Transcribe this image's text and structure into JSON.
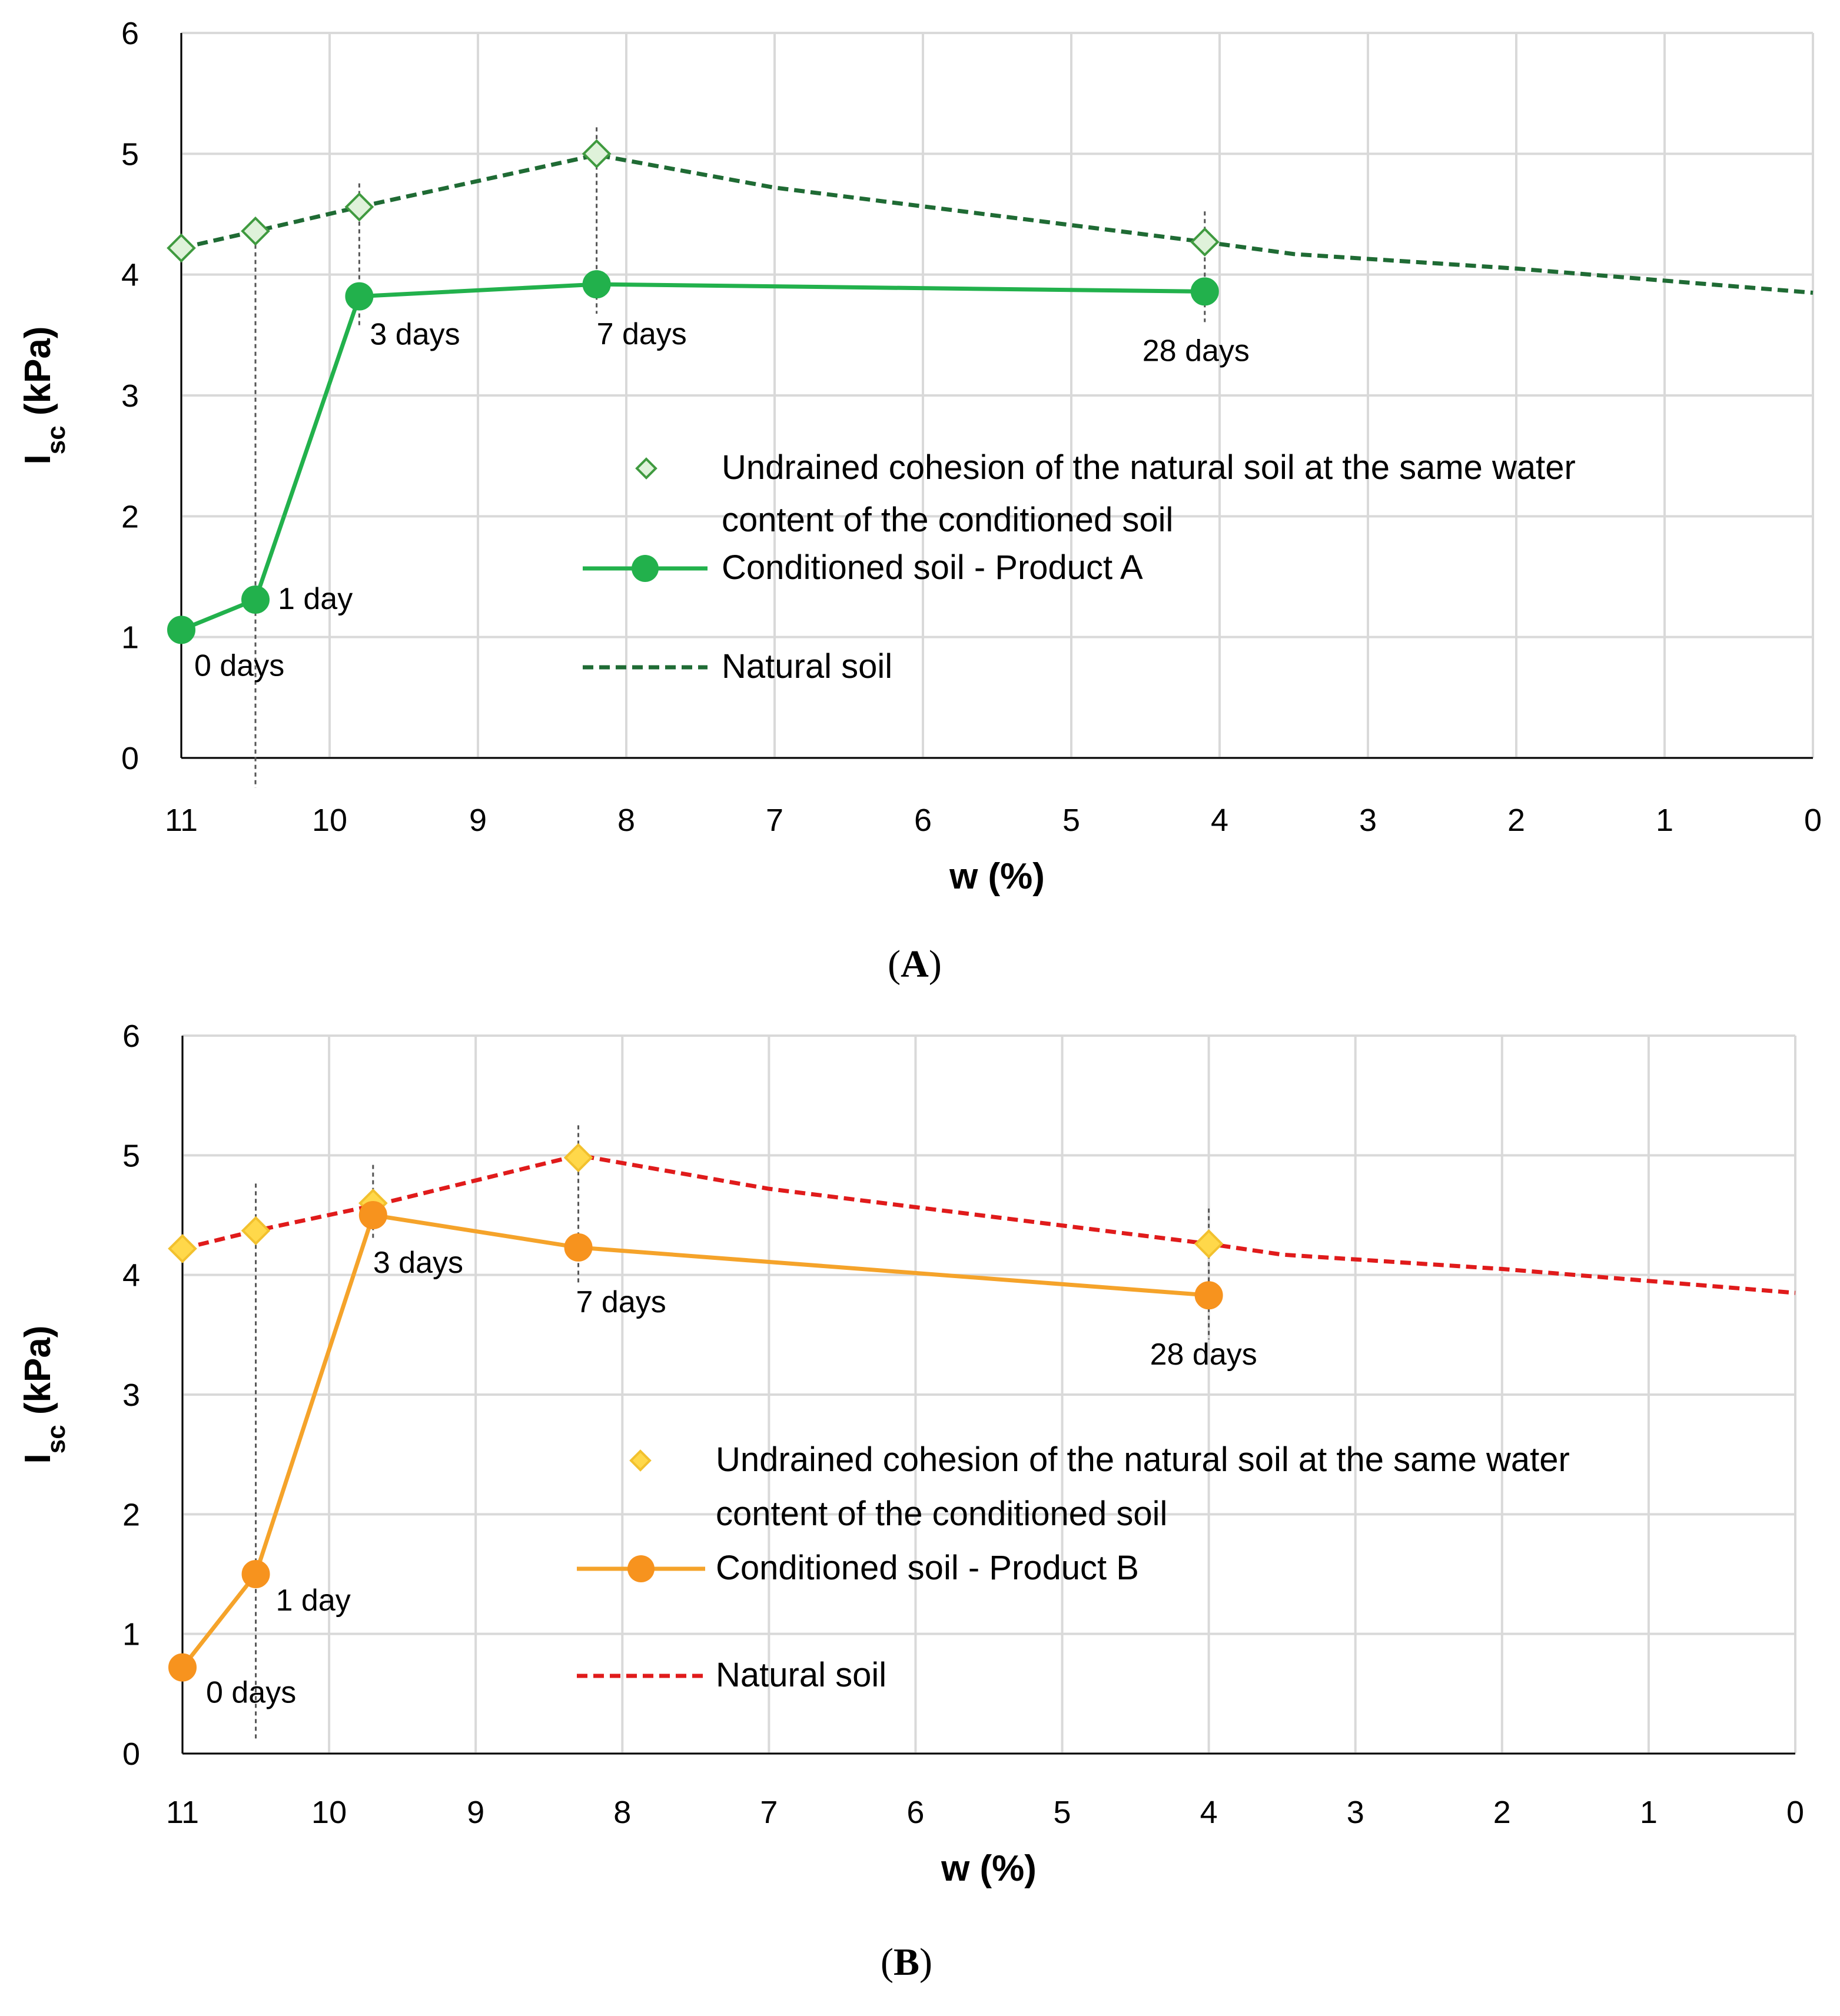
{
  "chart_data": [
    {
      "type": "line",
      "panel_label": "A",
      "xlabel": "w (%)",
      "ylabel": "Isc (kPa)",
      "ylabel_main": "I",
      "ylabel_sub": "sc",
      "ylabel_unit": " (kPa)",
      "xlim": [
        11,
        0
      ],
      "ylim": [
        0,
        6
      ],
      "x_reversed": true,
      "grid": true,
      "x_ticks": [
        "11",
        "10",
        "9",
        "8",
        "7",
        "6",
        "5",
        "4",
        "3",
        "2",
        "1",
        "0"
      ],
      "y_ticks": [
        "0",
        "1",
        "2",
        "3",
        "4",
        "5",
        "6"
      ],
      "series": [
        {
          "name": "Natural soil",
          "style": "dashed",
          "color": "#1f6b34",
          "x": [
            11,
            10.5,
            9.8,
            8.2,
            7,
            4.1,
            3.5,
            2,
            0
          ],
          "y": [
            4.22,
            4.36,
            4.56,
            4.99,
            4.72,
            4.27,
            4.17,
            4.05,
            3.85
          ]
        },
        {
          "name": "Conditioned soil - Product A",
          "style": "solid-markers",
          "color": "#22b14c",
          "x": [
            11,
            10.5,
            9.8,
            8.2,
            4.1
          ],
          "y": [
            1.06,
            1.31,
            3.82,
            3.92,
            3.86
          ],
          "labels": [
            "0 days",
            "1 day",
            "3 days",
            "7 days",
            "28 days"
          ]
        },
        {
          "name": "Undrained cohesion of the natural soil at the same water content of the conditioned soil",
          "legend_line1": "Undrained cohesion of the natural soil at the same water",
          "legend_line2": "content of the conditioned soil",
          "style": "diamond-markers",
          "marker_fill": "#dff2da",
          "marker_stroke": "#3f9a3f",
          "x": [
            11,
            10.5,
            9.8,
            8.2,
            4.1
          ],
          "y": [
            4.22,
            4.36,
            4.56,
            5.0,
            4.27
          ]
        }
      ]
    },
    {
      "type": "line",
      "panel_label": "B",
      "xlabel": "w (%)",
      "ylabel": "Isc (kPa)",
      "ylabel_main": "I",
      "ylabel_sub": "sc",
      "ylabel_unit": " (kPa)",
      "xlim": [
        11,
        0
      ],
      "ylim": [
        0,
        6
      ],
      "x_reversed": true,
      "grid": true,
      "x_ticks": [
        "11",
        "10",
        "9",
        "8",
        "7",
        "6",
        "5",
        "4",
        "3",
        "2",
        "1",
        "0"
      ],
      "y_ticks": [
        "0",
        "1",
        "2",
        "3",
        "4",
        "5",
        "6"
      ],
      "series": [
        {
          "name": "Natural soil",
          "style": "dashed",
          "color": "#e01b1b",
          "x": [
            11,
            10.5,
            9.7,
            8.3,
            7,
            4,
            3.5,
            2,
            0
          ],
          "y": [
            4.22,
            4.37,
            4.58,
            5.0,
            4.72,
            4.26,
            4.17,
            4.05,
            3.85
          ]
        },
        {
          "name": "Conditioned soil - Product B",
          "style": "solid-markers",
          "color": "#f5a32a",
          "marker_color": "#f7931e",
          "x": [
            11,
            10.5,
            9.7,
            8.3,
            4
          ],
          "y": [
            0.72,
            1.5,
            4.5,
            4.23,
            3.83
          ],
          "labels": [
            "0 days",
            "1 day",
            "3 days",
            "7 days",
            "28 days"
          ]
        },
        {
          "name": "Undrained cohesion of the natural soil at the same water content of the conditioned soil",
          "legend_line1": "Undrained cohesion of the natural soil at the same water",
          "legend_line2": "content of the conditioned soil",
          "style": "diamond-markers",
          "marker_fill": "#ffd84a",
          "marker_stroke": "#f2c12e",
          "x": [
            11,
            10.5,
            9.7,
            8.3,
            4
          ],
          "y": [
            4.22,
            4.37,
            4.6,
            4.98,
            4.26
          ]
        }
      ]
    }
  ]
}
